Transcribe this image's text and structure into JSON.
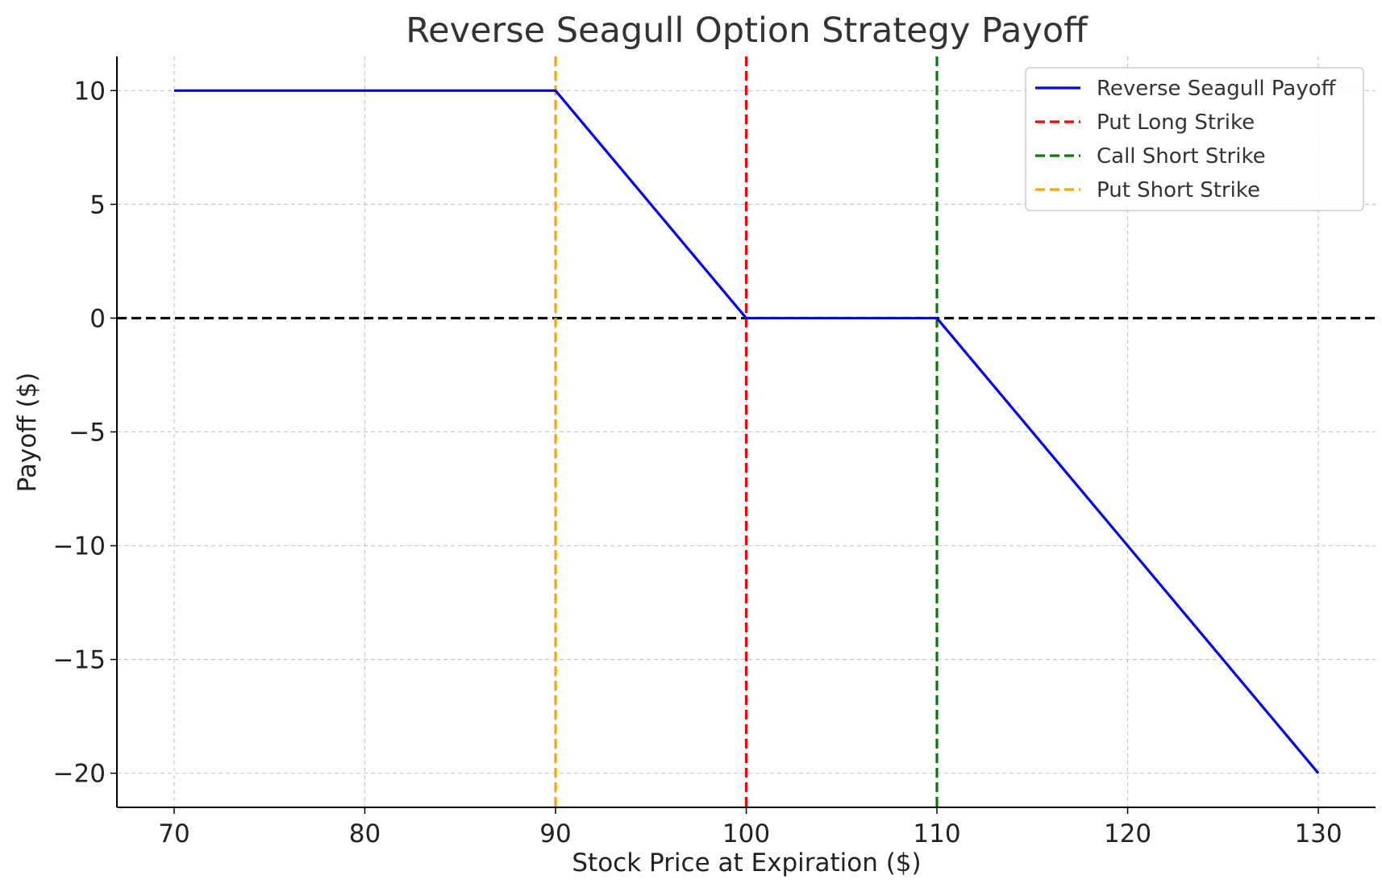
{
  "chart_data": {
    "type": "line",
    "title": "Reverse Seagull Option Strategy Payoff",
    "xlabel": "Stock Price at Expiration ($)",
    "ylabel": "Payoff ($)",
    "xlim": [
      67,
      133
    ],
    "ylim": [
      -21.5,
      11.5
    ],
    "xticks": [
      70,
      80,
      90,
      100,
      110,
      120,
      130
    ],
    "yticks": [
      10,
      5,
      0,
      -5,
      -10,
      -15,
      -20
    ],
    "ytick_labels": [
      "10",
      "5",
      "0",
      "−5",
      "−10",
      "−15",
      "−20"
    ],
    "grid": true,
    "legend_position": "top-right",
    "series": [
      {
        "name": "Reverse Seagull Payoff",
        "style": "solid",
        "color": "#0000ff",
        "x": [
          70,
          90,
          100,
          110,
          130
        ],
        "y": [
          10,
          10,
          0,
          0,
          -20
        ]
      }
    ],
    "vlines": [
      {
        "name": "Put Long Strike",
        "x": 100,
        "color": "#ff0000",
        "style": "dashed"
      },
      {
        "name": "Call Short Strike",
        "x": 110,
        "color": "#008000",
        "style": "dashed"
      },
      {
        "name": "Put Short Strike",
        "x": 90,
        "color": "#ffa500",
        "style": "dashed"
      }
    ],
    "hlines": [
      {
        "y": 0,
        "color": "#000000",
        "style": "dashed"
      }
    ],
    "legend": [
      {
        "label": "Reverse Seagull Payoff",
        "color": "#0000ff",
        "style": "solid"
      },
      {
        "label": "Put Long Strike",
        "color": "#ff0000",
        "style": "dashed"
      },
      {
        "label": "Call Short Strike",
        "color": "#008000",
        "style": "dashed"
      },
      {
        "label": "Put Short Strike",
        "color": "#ffa500",
        "style": "dashed"
      }
    ]
  }
}
